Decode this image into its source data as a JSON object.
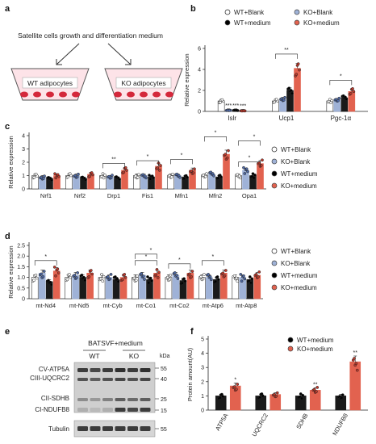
{
  "colors": {
    "wt_blank": "#ffffff",
    "ko_blank": "#9fb2d7",
    "wt_medium": "#1a1a1a",
    "ko_medium": "#e2624f",
    "ko_medium_dot": "#c0392b",
    "well_fill": "#fde3e8",
    "cell_red": "#d4283b"
  },
  "panels": {
    "a": {
      "letter": "a",
      "title": "Satellite cells growth and differentiation medium",
      "left_well": "WT adipocytes",
      "right_well": "KO adipocytes"
    },
    "e": {
      "letter": "e",
      "header": "BATSVF+medium",
      "groups": [
        "WT",
        "KO"
      ],
      "kda_label": "kDa",
      "proteins": [
        "CV-ATP5A",
        "CIII-UQCRC2",
        "CII-SDHB",
        "CI-NDUFB8",
        "Tubulin"
      ],
      "markers": [
        "55",
        "40",
        "25",
        "15",
        "55"
      ]
    }
  },
  "chart_data": [
    {
      "panel": "b",
      "type": "bar",
      "ylabel": "Relative expression",
      "ylim": [
        0,
        6
      ],
      "yticks": [
        0,
        2,
        4,
        6
      ],
      "categories": [
        "Islr",
        "Ucp1",
        "Pgc-1α"
      ],
      "series": [
        {
          "name": "WT+Blank",
          "values": [
            1.0,
            1.0,
            1.0
          ]
        },
        {
          "name": "KO+Blank",
          "values": [
            0.1,
            1.2,
            1.1
          ]
        },
        {
          "name": "WT+medium",
          "values": [
            0.1,
            2.0,
            1.3
          ]
        },
        {
          "name": "KO+medium",
          "values": [
            0.05,
            4.1,
            1.9
          ]
        }
      ],
      "annotations": [
        {
          "text": "***",
          "category": 0,
          "series": 1
        },
        {
          "text": "***",
          "category": 0,
          "series": 2
        },
        {
          "text": "***",
          "category": 0,
          "series": 3
        },
        {
          "text": "**",
          "category": 1,
          "top": 5.7
        },
        {
          "text": "*",
          "category": 2,
          "top": 3.2
        }
      ],
      "legend": [
        "WT+Blank",
        "KO+Blank",
        "WT+medium",
        "KO+medium"
      ],
      "legend_position": "top"
    },
    {
      "panel": "c",
      "type": "bar",
      "ylabel": "Relative expression",
      "ylim": [
        0,
        4
      ],
      "yticks": [
        0,
        1,
        2,
        3,
        4
      ],
      "categories": [
        "Nrf1",
        "Nrf2",
        "Drp1",
        "Fis1",
        "Mfn1",
        "Mfn2",
        "Opa1"
      ],
      "series": [
        {
          "name": "WT+Blank",
          "values": [
            1.0,
            1.0,
            1.0,
            1.0,
            1.0,
            1.0,
            1.0
          ]
        },
        {
          "name": "KO+Blank",
          "values": [
            0.9,
            1.0,
            0.9,
            1.0,
            1.0,
            1.1,
            1.4
          ]
        },
        {
          "name": "WT+medium",
          "values": [
            0.8,
            0.8,
            0.8,
            0.9,
            0.9,
            0.9,
            1.0
          ]
        },
        {
          "name": "KO+medium",
          "values": [
            1.0,
            1.1,
            1.4,
            1.7,
            1.4,
            2.6,
            1.9
          ]
        }
      ],
      "annotations": [
        {
          "text": "**",
          "category": 2,
          "top": 2.1
        },
        {
          "text": "*",
          "category": 3,
          "top": 2.3
        },
        {
          "text": "*",
          "category": 4,
          "top": 2.4
        },
        {
          "text": "*",
          "category": 5,
          "top": 4.1
        },
        {
          "text": "*",
          "category": 6,
          "top": 2.2
        },
        {
          "text": "*",
          "category": 6,
          "top": 3.3
        }
      ],
      "legend": [
        "WT+Blank",
        "KO+Blank",
        "WT+medium",
        "KO+medium"
      ],
      "legend_position": "right"
    },
    {
      "panel": "d",
      "type": "bar",
      "ylabel": "Relative expression",
      "ylim": [
        0,
        2.5
      ],
      "yticks": [
        0,
        0.5,
        1.0,
        1.5,
        2.0,
        2.5
      ],
      "categories": [
        "mt-Nd4",
        "mt-Nd5",
        "mt-Cyb",
        "mt-Co1",
        "mt-Co2",
        "mt-Atp6",
        "mt-Atp8"
      ],
      "series": [
        {
          "name": "WT+Blank",
          "values": [
            1.0,
            1.0,
            1.0,
            1.0,
            1.0,
            1.0,
            1.0
          ]
        },
        {
          "name": "KO+Blank",
          "values": [
            1.2,
            1.1,
            1.0,
            1.1,
            1.1,
            1.0,
            1.0
          ]
        },
        {
          "name": "WT+medium",
          "values": [
            0.8,
            1.0,
            0.9,
            0.9,
            0.85,
            0.9,
            0.9
          ]
        },
        {
          "name": "KO+medium",
          "values": [
            1.3,
            1.2,
            1.0,
            1.2,
            1.2,
            1.2,
            1.1
          ]
        }
      ],
      "annotations": [
        {
          "text": "*",
          "category": 0,
          "top": 1.9
        },
        {
          "text": "*",
          "category": 3,
          "top": 1.9
        },
        {
          "text": "*",
          "category": 3,
          "top": 1.9
        },
        {
          "text": "*",
          "category": 4,
          "top": 1.75
        },
        {
          "text": "*",
          "category": 5,
          "top": 1.9
        }
      ],
      "legend": [
        "WT+Blank",
        "KO+Blank",
        "WT+medium",
        "KO+medium"
      ],
      "legend_position": "right"
    },
    {
      "panel": "f",
      "type": "bar",
      "ylabel": "Protein amount(AU)",
      "ylim": [
        0,
        5
      ],
      "yticks": [
        0,
        1,
        2,
        3,
        4,
        5
      ],
      "categories": [
        "ATP5A",
        "UQCRC2",
        "SDHB",
        "NDUFB8"
      ],
      "series": [
        {
          "name": "WT+medium",
          "values": [
            1.0,
            1.0,
            1.0,
            1.0
          ]
        },
        {
          "name": "KO+medium",
          "values": [
            1.7,
            1.1,
            1.4,
            3.4
          ]
        }
      ],
      "annotations": [
        {
          "text": "*",
          "category": 0,
          "series": 1
        },
        {
          "text": "**",
          "category": 2,
          "series": 1
        },
        {
          "text": "**",
          "category": 3,
          "series": 1
        }
      ],
      "legend": [
        "WT+medium",
        "KO+medium"
      ],
      "legend_position": "top-right"
    }
  ]
}
